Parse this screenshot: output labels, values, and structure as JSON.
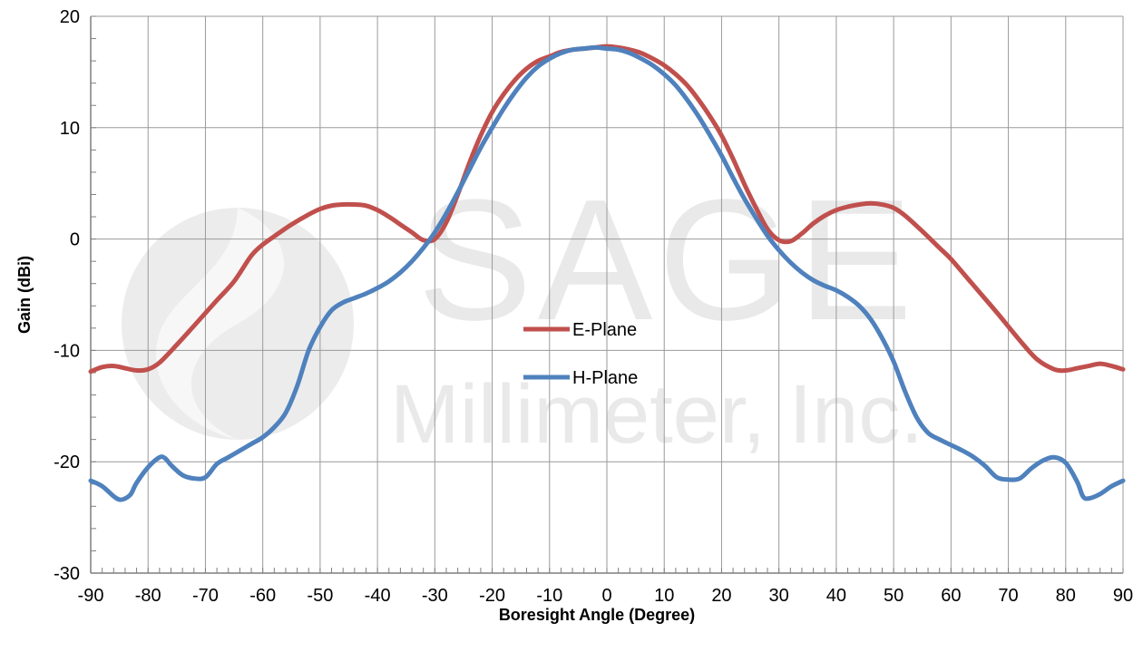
{
  "chart_data": {
    "type": "line",
    "xlabel": "Boresight Angle (Degree)",
    "ylabel": "Gain (dBi)",
    "xlim": [
      -90,
      90
    ],
    "ylim": [
      -30,
      20
    ],
    "xticks": [
      -90,
      -80,
      -70,
      -60,
      -50,
      -40,
      -30,
      -20,
      -10,
      0,
      10,
      20,
      30,
      40,
      50,
      60,
      70,
      80,
      90
    ],
    "yticks": [
      -30,
      -20,
      -10,
      0,
      10,
      20
    ],
    "grid": true,
    "legend_position": "center",
    "watermark": {
      "line1": "SAGE",
      "line2": "Millimeter, Inc."
    },
    "series": [
      {
        "name": "E-Plane",
        "color": "#c0504d",
        "x": [
          -90,
          -88,
          -86,
          -84,
          -82,
          -80,
          -78,
          -75,
          -72,
          -68,
          -65,
          -62,
          -60,
          -57,
          -55,
          -52,
          -50,
          -48,
          -46,
          -44,
          -42,
          -40,
          -38,
          -36,
          -34,
          -32,
          -30,
          -28,
          -26,
          -24,
          -22,
          -20,
          -18,
          -16,
          -14,
          -12,
          -10,
          -8,
          -6,
          -4,
          -2,
          0,
          2,
          4,
          6,
          8,
          10,
          12,
          14,
          16,
          18,
          20,
          22,
          24,
          26,
          28,
          30,
          32,
          34,
          36,
          38,
          40,
          42,
          44,
          46,
          48,
          50,
          52,
          55,
          58,
          60,
          63,
          65,
          68,
          72,
          75,
          78,
          80,
          82,
          84,
          86,
          88,
          90
        ],
        "values": [
          -11.9,
          -11.5,
          -11.4,
          -11.6,
          -11.8,
          -11.7,
          -11.1,
          -9.5,
          -7.8,
          -5.5,
          -3.8,
          -1.5,
          -0.5,
          0.6,
          1.3,
          2.2,
          2.7,
          3.0,
          3.1,
          3.1,
          3.0,
          2.6,
          2.0,
          1.3,
          0.6,
          -0.1,
          0.0,
          1.5,
          4.0,
          6.8,
          9.3,
          11.4,
          13.0,
          14.3,
          15.3,
          16.0,
          16.4,
          16.8,
          17.0,
          17.1,
          17.2,
          17.3,
          17.2,
          17.0,
          16.7,
          16.2,
          15.6,
          14.8,
          13.8,
          12.5,
          11.0,
          9.3,
          7.2,
          4.9,
          2.8,
          0.9,
          -0.1,
          -0.2,
          0.5,
          1.4,
          2.1,
          2.6,
          2.9,
          3.1,
          3.2,
          3.1,
          2.8,
          2.1,
          0.7,
          -0.8,
          -1.8,
          -3.6,
          -4.8,
          -6.6,
          -9.1,
          -10.8,
          -11.7,
          -11.8,
          -11.6,
          -11.4,
          -11.2,
          -11.4,
          -11.7
        ]
      },
      {
        "name": "H-Plane",
        "color": "#4f81bd",
        "x": [
          -90,
          -88,
          -86,
          -85,
          -84,
          -83,
          -82,
          -80,
          -78,
          -77,
          -76,
          -74,
          -72,
          -70,
          -68,
          -66,
          -64,
          -62,
          -60,
          -58,
          -56,
          -54,
          -52,
          -50,
          -48,
          -46,
          -44,
          -42,
          -40,
          -38,
          -36,
          -34,
          -32,
          -30,
          -28,
          -26,
          -24,
          -22,
          -20,
          -18,
          -16,
          -14,
          -12,
          -10,
          -8,
          -6,
          -4,
          -2,
          0,
          2,
          4,
          6,
          8,
          10,
          12,
          14,
          16,
          18,
          20,
          22,
          24,
          26,
          28,
          30,
          32,
          34,
          36,
          38,
          40,
          42,
          44,
          46,
          48,
          50,
          52,
          54,
          56,
          58,
          60,
          62,
          64,
          66,
          68,
          70,
          72,
          74,
          76,
          78,
          80,
          82,
          83,
          84,
          86,
          88,
          90
        ],
        "values": [
          -21.7,
          -22.2,
          -23.1,
          -23.4,
          -23.3,
          -22.9,
          -21.9,
          -20.5,
          -19.6,
          -19.7,
          -20.3,
          -21.2,
          -21.5,
          -21.4,
          -20.2,
          -19.6,
          -19.0,
          -18.4,
          -17.8,
          -16.9,
          -15.6,
          -13.2,
          -10.0,
          -7.9,
          -6.4,
          -5.7,
          -5.3,
          -4.9,
          -4.4,
          -3.8,
          -3.0,
          -2.0,
          -0.8,
          0.6,
          2.3,
          4.2,
          6.2,
          8.2,
          10.0,
          11.7,
          13.2,
          14.5,
          15.5,
          16.2,
          16.7,
          17.0,
          17.1,
          17.2,
          17.1,
          17.0,
          16.7,
          16.2,
          15.6,
          14.8,
          13.8,
          12.5,
          11.0,
          9.3,
          7.5,
          5.5,
          3.6,
          1.9,
          0.3,
          -1.0,
          -2.1,
          -3.0,
          -3.7,
          -4.2,
          -4.6,
          -5.2,
          -6.0,
          -7.2,
          -8.9,
          -11.0,
          -13.7,
          -16.0,
          -17.4,
          -18.0,
          -18.5,
          -19.0,
          -19.6,
          -20.4,
          -21.4,
          -21.6,
          -21.5,
          -20.6,
          -19.9,
          -19.6,
          -20.1,
          -21.8,
          -23.1,
          -23.3,
          -22.9,
          -22.2,
          -21.7
        ]
      }
    ]
  }
}
